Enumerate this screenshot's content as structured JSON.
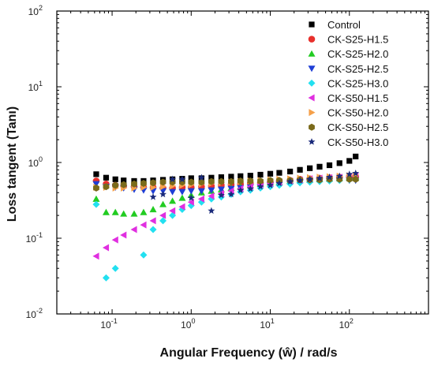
{
  "chart_data": {
    "type": "scatter",
    "title": "",
    "xlabel": "Angular Frequency (ŵ) / rad/s",
    "ylabel": "Loss tangent (Tanı)",
    "xscale": "log",
    "yscale": "log",
    "xlim": [
      0.02,
      1000
    ],
    "ylim": [
      0.01,
      100
    ],
    "x_ticks": [
      {
        "value": 0.1,
        "base": "10",
        "exp": "-1"
      },
      {
        "value": 1,
        "base": "10",
        "exp": "0"
      },
      {
        "value": 10,
        "base": "10",
        "exp": "1"
      },
      {
        "value": 100,
        "base": "10",
        "exp": "2"
      }
    ],
    "y_ticks": [
      {
        "value": 0.01,
        "base": "10",
        "exp": "-2"
      },
      {
        "value": 0.1,
        "base": "10",
        "exp": "-1"
      },
      {
        "value": 1,
        "base": "10",
        "exp": "0"
      },
      {
        "value": 10,
        "base": "10",
        "exp": "1"
      },
      {
        "value": 100,
        "base": "10",
        "exp": "2"
      }
    ],
    "grid": false,
    "legend_position": "top-right",
    "series": [
      {
        "name": "Control",
        "marker": "square",
        "color": "#000000",
        "x": [
          0.063,
          0.084,
          0.11,
          0.14,
          0.19,
          0.25,
          0.33,
          0.44,
          0.58,
          0.77,
          1.0,
          1.35,
          1.8,
          2.4,
          3.2,
          4.2,
          5.6,
          7.5,
          10,
          13,
          17.8,
          23.7,
          31.6,
          42,
          56,
          75,
          100,
          120
        ],
        "y": [
          0.7,
          0.63,
          0.6,
          0.58,
          0.57,
          0.57,
          0.58,
          0.59,
          0.6,
          0.61,
          0.62,
          0.62,
          0.63,
          0.64,
          0.65,
          0.66,
          0.67,
          0.69,
          0.71,
          0.73,
          0.76,
          0.8,
          0.84,
          0.88,
          0.92,
          0.98,
          1.05,
          1.2
        ]
      },
      {
        "name": "CK-S25-H1.5",
        "marker": "circle",
        "color": "#e8302c",
        "x": [
          0.063,
          0.084,
          0.11,
          0.14,
          0.19,
          0.25,
          0.33,
          0.44,
          0.58,
          0.77,
          1.0,
          1.35,
          1.8,
          2.4,
          3.2,
          4.2,
          5.6,
          7.5,
          10,
          13,
          17.8,
          23.7,
          31.6,
          42,
          56,
          75,
          100,
          120
        ],
        "y": [
          0.57,
          0.52,
          0.5,
          0.49,
          0.48,
          0.47,
          0.47,
          0.46,
          0.46,
          0.47,
          0.47,
          0.48,
          0.49,
          0.5,
          0.51,
          0.52,
          0.53,
          0.54,
          0.55,
          0.57,
          0.58,
          0.6,
          0.61,
          0.62,
          0.63,
          0.64,
          0.65,
          0.65
        ]
      },
      {
        "name": "CK-S25-H2.0",
        "marker": "triangle-up",
        "color": "#22cc22",
        "x": [
          0.063,
          0.084,
          0.11,
          0.14,
          0.19,
          0.25,
          0.33,
          0.44,
          0.58,
          0.77,
          1.0,
          1.35,
          1.8,
          2.4,
          3.2,
          4.2,
          5.6,
          7.5,
          10,
          13,
          17.8,
          23.7,
          31.6,
          42,
          56,
          75,
          100,
          120
        ],
        "y": [
          0.33,
          0.22,
          0.22,
          0.21,
          0.21,
          0.22,
          0.24,
          0.28,
          0.31,
          0.34,
          0.37,
          0.4,
          0.42,
          0.44,
          0.46,
          0.48,
          0.5,
          0.52,
          0.54,
          0.55,
          0.57,
          0.58,
          0.59,
          0.6,
          0.61,
          0.62,
          0.63,
          0.63
        ]
      },
      {
        "name": "CK-S25-H2.5",
        "marker": "triangle-down",
        "color": "#1f3fd6",
        "x": [
          0.063,
          0.084,
          0.11,
          0.14,
          0.19,
          0.25,
          0.33,
          0.44,
          0.58,
          0.77,
          1.0,
          1.35,
          1.8,
          2.4,
          3.2,
          4.2,
          5.6,
          7.5,
          10,
          13,
          17.8,
          23.7,
          31.6,
          42,
          56,
          75,
          100,
          120
        ],
        "y": [
          0.52,
          0.48,
          0.47,
          0.46,
          0.44,
          0.43,
          0.42,
          0.42,
          0.41,
          0.41,
          0.42,
          0.42,
          0.43,
          0.44,
          0.45,
          0.46,
          0.47,
          0.48,
          0.5,
          0.51,
          0.52,
          0.54,
          0.55,
          0.56,
          0.57,
          0.58,
          0.58,
          0.58
        ]
      },
      {
        "name": "CK-S25-H3.0",
        "marker": "diamond",
        "color": "#22e0f0",
        "x": [
          0.063,
          0.084,
          0.11,
          0.14,
          0.19,
          0.25,
          0.33,
          0.44,
          0.58,
          0.77,
          1.0,
          1.35,
          1.8,
          2.4,
          3.2,
          4.2,
          5.6,
          7.5,
          10,
          13,
          17.8,
          23.7,
          31.6,
          42,
          56,
          75,
          100,
          120
        ],
        "y": [
          0.28,
          0.03,
          0.04,
          null,
          null,
          0.06,
          0.13,
          0.17,
          0.2,
          0.24,
          0.27,
          0.3,
          0.33,
          0.35,
          0.38,
          0.41,
          0.43,
          0.46,
          0.48,
          0.5,
          0.52,
          0.54,
          0.55,
          0.56,
          0.57,
          0.58,
          0.59,
          0.6
        ]
      },
      {
        "name": "CK-S50-H1.5",
        "marker": "triangle-left",
        "color": "#e02fe0",
        "x": [
          0.063,
          0.084,
          0.11,
          0.14,
          0.19,
          0.25,
          0.33,
          0.44,
          0.58,
          0.77,
          1.0,
          1.35,
          1.8,
          2.4,
          3.2,
          4.2,
          5.6,
          7.5,
          10,
          13,
          17.8,
          23.7,
          31.6,
          42,
          56,
          75,
          100,
          120
        ],
        "y": [
          0.058,
          0.075,
          0.095,
          0.11,
          0.13,
          0.15,
          0.17,
          0.2,
          0.23,
          0.26,
          0.3,
          0.33,
          0.36,
          0.39,
          0.42,
          0.45,
          0.48,
          0.51,
          0.53,
          0.55,
          0.57,
          0.59,
          0.61,
          0.62,
          0.63,
          0.64,
          0.65,
          0.66
        ]
      },
      {
        "name": "CK-S50-H2.0",
        "marker": "triangle-right",
        "color": "#f5a04a",
        "x": [
          0.063,
          0.084,
          0.11,
          0.14,
          0.19,
          0.25,
          0.33,
          0.44,
          0.58,
          0.77,
          1.0,
          1.35,
          1.8,
          2.4,
          3.2,
          4.2,
          5.6,
          7.5,
          10,
          13,
          17.8,
          23.7,
          31.6,
          42,
          56,
          75,
          100,
          120
        ],
        "y": [
          0.47,
          0.47,
          0.46,
          0.46,
          0.46,
          0.47,
          0.47,
          0.48,
          0.49,
          0.5,
          0.51,
          0.52,
          0.53,
          0.54,
          0.55,
          0.56,
          0.57,
          0.58,
          0.59,
          0.6,
          0.61,
          0.62,
          0.63,
          0.64,
          0.65,
          0.66,
          0.67,
          0.68
        ]
      },
      {
        "name": "CK-S50-H2.5",
        "marker": "hexagon",
        "color": "#7a6a1a",
        "x": [
          0.063,
          0.084,
          0.11,
          0.14,
          0.19,
          0.25,
          0.33,
          0.44,
          0.58,
          0.77,
          1.0,
          1.35,
          1.8,
          2.4,
          3.2,
          4.2,
          5.6,
          7.5,
          10,
          13,
          17.8,
          23.7,
          31.6,
          42,
          56,
          75,
          100,
          120
        ],
        "y": [
          0.46,
          0.48,
          0.5,
          0.51,
          0.52,
          0.53,
          0.54,
          0.55,
          0.55,
          0.55,
          0.55,
          0.55,
          0.56,
          0.56,
          0.56,
          0.57,
          0.57,
          0.57,
          0.58,
          0.58,
          0.58,
          0.59,
          0.59,
          0.59,
          0.6,
          0.6,
          0.6,
          0.6
        ]
      },
      {
        "name": "CK-S50-H3.0",
        "marker": "star",
        "color": "#1a2a7a",
        "x": [
          0.063,
          0.084,
          0.11,
          0.14,
          0.19,
          0.25,
          0.33,
          0.44,
          0.58,
          0.77,
          1.0,
          1.35,
          1.8,
          2.4,
          3.2,
          4.2,
          5.6,
          7.5,
          10,
          13,
          17.8,
          23.7,
          31.6,
          42,
          56,
          75,
          100,
          120
        ],
        "y": [
          null,
          null,
          null,
          null,
          null,
          null,
          0.35,
          0.38,
          0.6,
          0.6,
          0.34,
          0.63,
          0.23,
          0.37,
          0.38,
          0.43,
          0.45,
          0.48,
          0.5,
          0.53,
          0.56,
          0.58,
          0.6,
          0.62,
          0.64,
          0.66,
          0.7,
          0.72
        ]
      }
    ]
  }
}
